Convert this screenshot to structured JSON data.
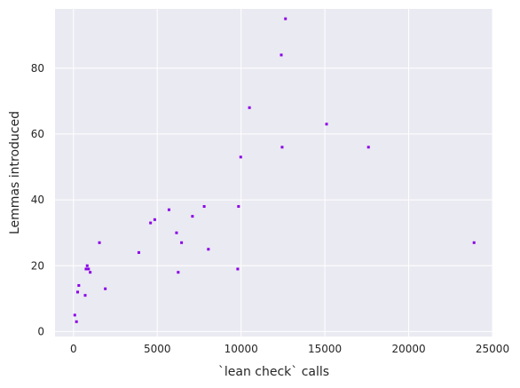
{
  "chart_data": {
    "type": "scatter",
    "title": "",
    "xlabel": "`lean check` calls",
    "ylabel": "Lemmas introduced",
    "xlim": [
      -1100,
      25000
    ],
    "ylim": [
      -1.5,
      98
    ],
    "xticks": [
      0,
      5000,
      10000,
      15000,
      20000,
      25000
    ],
    "yticks": [
      0,
      20,
      40,
      60,
      80
    ],
    "grid": true,
    "background": "#eaeaf2",
    "gridColor": "#ffffff",
    "pointColor": "#8b00e8",
    "points": [
      {
        "x": 80,
        "y": 5
      },
      {
        "x": 180,
        "y": 3
      },
      {
        "x": 250,
        "y": 12
      },
      {
        "x": 320,
        "y": 14
      },
      {
        "x": 700,
        "y": 11
      },
      {
        "x": 750,
        "y": 19
      },
      {
        "x": 820,
        "y": 20
      },
      {
        "x": 900,
        "y": 19
      },
      {
        "x": 1000,
        "y": 18
      },
      {
        "x": 1550,
        "y": 27
      },
      {
        "x": 1900,
        "y": 13
      },
      {
        "x": 3900,
        "y": 24
      },
      {
        "x": 4600,
        "y": 33
      },
      {
        "x": 4850,
        "y": 34
      },
      {
        "x": 5700,
        "y": 37
      },
      {
        "x": 6150,
        "y": 30
      },
      {
        "x": 6250,
        "y": 18
      },
      {
        "x": 6450,
        "y": 27
      },
      {
        "x": 7100,
        "y": 35
      },
      {
        "x": 7800,
        "y": 38
      },
      {
        "x": 8050,
        "y": 25
      },
      {
        "x": 9800,
        "y": 19
      },
      {
        "x": 9850,
        "y": 38
      },
      {
        "x": 9980,
        "y": 53
      },
      {
        "x": 10500,
        "y": 68
      },
      {
        "x": 12400,
        "y": 84
      },
      {
        "x": 12450,
        "y": 56
      },
      {
        "x": 12650,
        "y": 95
      },
      {
        "x": 15100,
        "y": 63
      },
      {
        "x": 17600,
        "y": 56
      },
      {
        "x": 23900,
        "y": 27
      }
    ]
  }
}
